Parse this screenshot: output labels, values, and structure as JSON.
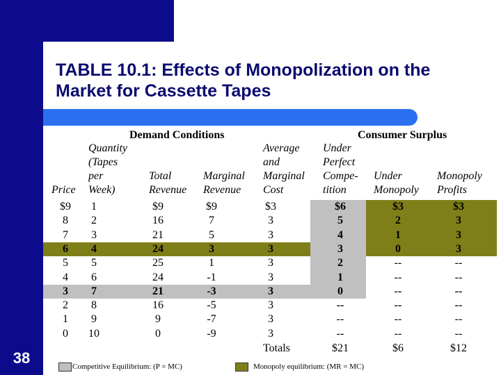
{
  "slide": {
    "number": "38",
    "title": "TABLE 10.1: Effects of Monopolization on the Market for Cassette Tapes"
  },
  "table": {
    "group_headers": {
      "demand": "Demand Conditions",
      "consumer_surplus": "Consumer Surplus"
    },
    "columns": [
      {
        "key": "price",
        "lines": [
          "Price"
        ]
      },
      {
        "key": "quantity",
        "lines": [
          "Quantity",
          "(Tapes",
          "per",
          "Week)"
        ]
      },
      {
        "key": "total_revenue",
        "lines": [
          "Total",
          "Revenue"
        ]
      },
      {
        "key": "marginal_revenue",
        "lines": [
          "Marginal",
          "Revenue"
        ]
      },
      {
        "key": "cost",
        "lines": [
          "Average",
          "and",
          "Marginal",
          "Cost"
        ]
      },
      {
        "key": "perfect",
        "lines": [
          "Under",
          "Perfect",
          "Compe-",
          "tition"
        ]
      },
      {
        "key": "monopoly",
        "lines": [
          "Under",
          "Monopoly"
        ]
      },
      {
        "key": "profits",
        "lines": [
          "Monopoly",
          "Profits"
        ]
      }
    ],
    "rows": [
      [
        "$9",
        "1",
        "$9",
        "$9",
        "$3",
        "$6",
        "$3",
        "$3"
      ],
      [
        "8",
        "2",
        "16",
        "7",
        "3",
        "5",
        "2",
        "3"
      ],
      [
        "7",
        "3",
        "21",
        "5",
        "3",
        "4",
        "1",
        "3"
      ],
      [
        "6",
        "4",
        "24",
        "3",
        "3",
        "3",
        "0",
        "3"
      ],
      [
        "5",
        "5",
        "25",
        "1",
        "3",
        "2",
        "--",
        "--"
      ],
      [
        "4",
        "6",
        "24",
        "-1",
        "3",
        "1",
        "--",
        "--"
      ],
      [
        "3",
        "7",
        "21",
        "-3",
        "3",
        "0",
        "--",
        "--"
      ],
      [
        "2",
        "8",
        "16",
        "-5",
        "3",
        "--",
        "--",
        "--"
      ],
      [
        "1",
        "9",
        "9",
        "-7",
        "3",
        "--",
        "--",
        "--"
      ],
      [
        "0",
        "10",
        "0",
        "-9",
        "3",
        "--",
        "--",
        "--"
      ]
    ],
    "totals": {
      "label": "Totals",
      "perfect": "$21",
      "monopoly": "$6",
      "profits": "$12"
    }
  },
  "legend": {
    "competitive": "Competitive Equilibrium: (P = MC)",
    "monopoly": "Monopoly equilibrium: (MR = MC)"
  },
  "colors": {
    "navy": "#0b0b8c",
    "accent_bar": "#2a70f0",
    "olive": "#7f7f1a",
    "grey": "#c0c0c0"
  }
}
